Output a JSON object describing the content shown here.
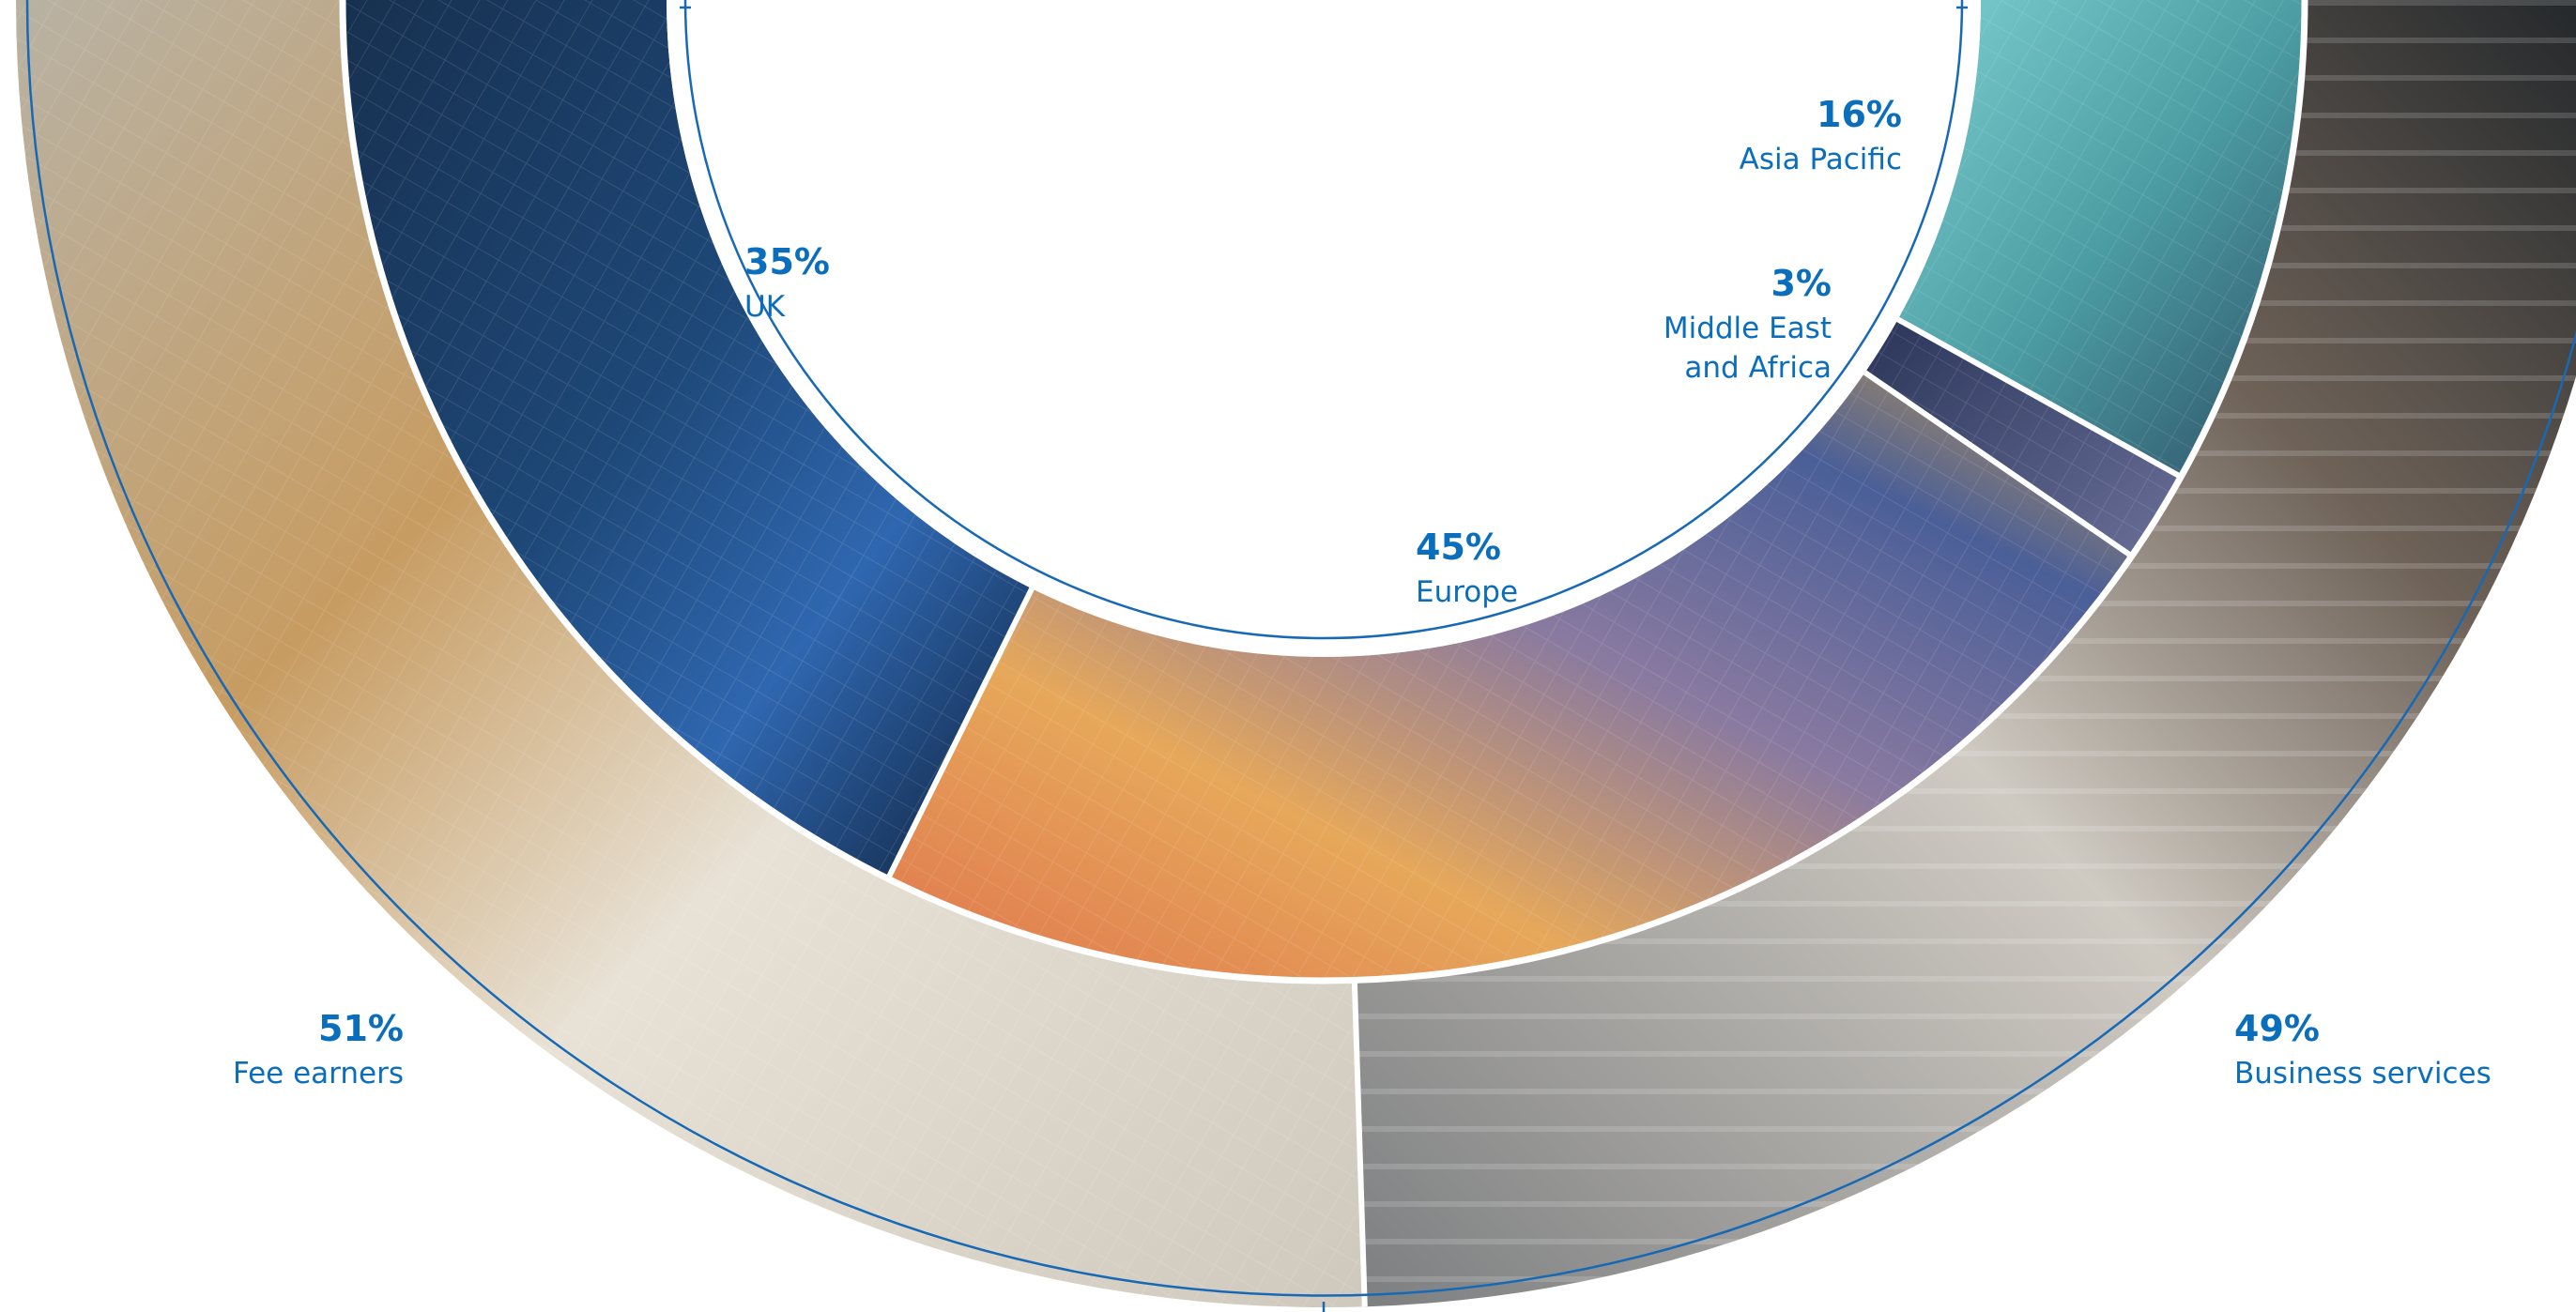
{
  "palette": {
    "accent": "#0a6ebd",
    "ring_line": "#1769b5",
    "separator": "#ffffff"
  },
  "chart_data": [
    {
      "type": "pie",
      "subtype": "half-donut",
      "ring": "inner",
      "title": "",
      "categories": [
        "UK",
        "Europe",
        "Middle East and Africa",
        "Asia Pacific"
      ],
      "values": [
        35,
        45,
        3,
        16
      ],
      "value_labels": [
        "35%",
        "45%",
        "3%",
        "16%"
      ],
      "label_lines": [
        [
          "UK"
        ],
        [
          "Europe"
        ],
        [
          "Middle East",
          "and Africa"
        ],
        [
          "Asia Pacific"
        ]
      ],
      "segment_imagery": [
        "city-light-trails-photo",
        "sunset-clouds-photo",
        "city-tower-night-photo",
        "glass-canopy-photo"
      ],
      "segment_colors": [
        "#1d3a66",
        "#c98a55",
        "#3c4e78",
        "#5aa6a8"
      ]
    },
    {
      "type": "pie",
      "subtype": "half-donut",
      "ring": "outer",
      "title": "",
      "categories": [
        "Fee earners",
        "Business services"
      ],
      "values": [
        51,
        49
      ],
      "value_labels": [
        "51%",
        "49%"
      ],
      "label_lines": [
        [
          "Fee earners"
        ],
        [
          "Business services"
        ]
      ],
      "segment_imagery": [
        "desk-meeting-photo",
        "open-plan-office-photo"
      ],
      "segment_colors": [
        "#c9a97c",
        "#8e8e8a"
      ]
    }
  ]
}
